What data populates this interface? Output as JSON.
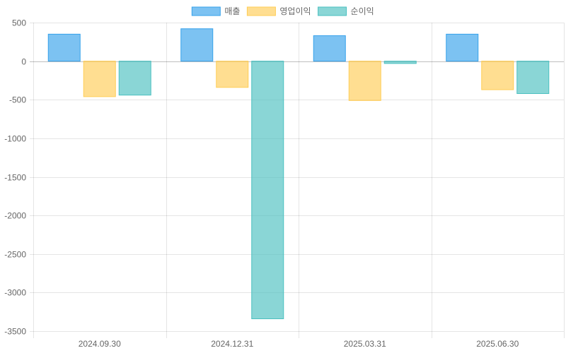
{
  "chart_data": {
    "type": "bar",
    "categories": [
      "2024.09.30",
      "2024.12.31",
      "2025.03.31",
      "2025.06.30"
    ],
    "series": [
      {
        "name": "매출",
        "values": [
          350,
          420,
          330,
          350
        ],
        "color": "#36A2EB"
      },
      {
        "name": "영업이익",
        "values": [
          -460,
          -340,
          -510,
          -370
        ],
        "color": "#FFCD56"
      },
      {
        "name": "순이익",
        "values": [
          -440,
          -3340,
          -30,
          -420
        ],
        "color": "#4BC0C0"
      }
    ],
    "ylim": [
      -3500,
      500
    ],
    "yticks": [
      500,
      0,
      -500,
      -1000,
      -1500,
      -2000,
      -2500,
      -3000,
      -3500
    ],
    "grid": true,
    "legend_position": "top"
  }
}
